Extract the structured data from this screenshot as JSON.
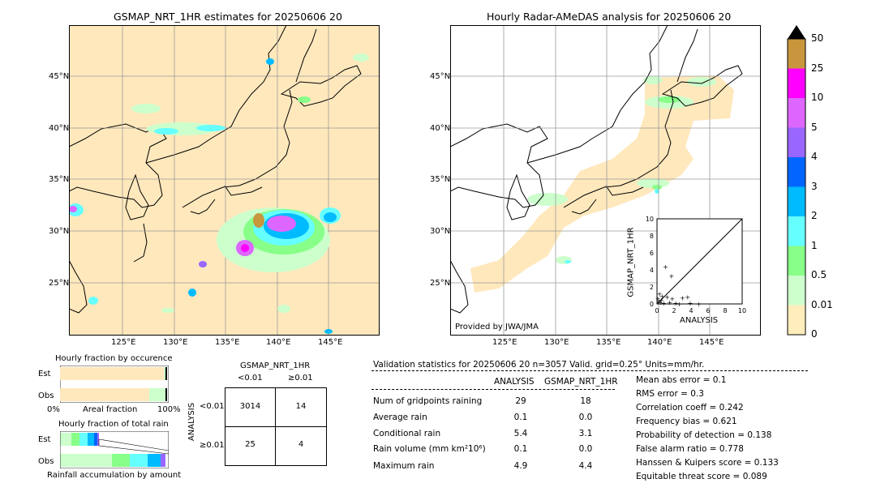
{
  "left_map": {
    "title": "GSMAP_NRT_1HR estimates for 20250606 20",
    "lat_labels": [
      "45°N",
      "40°N",
      "35°N",
      "30°N",
      "25°N"
    ],
    "lon_labels": [
      "125°E",
      "130°E",
      "135°E",
      "140°E",
      "145°E"
    ]
  },
  "right_map": {
    "title": "Hourly Radar-AMeDAS analysis for 20250606 20",
    "lat_labels": [
      "45°N",
      "40°N",
      "35°N",
      "30°N",
      "25°N"
    ],
    "lon_labels": [
      "125°E",
      "130°E",
      "135°E",
      "140°E",
      "145°E"
    ],
    "credit": "Provided by JWA/JMA"
  },
  "colorbar": {
    "labels": [
      "50",
      "25",
      "10",
      "5",
      "4",
      "3",
      "2",
      "1",
      "0.5",
      "0.01",
      "0"
    ],
    "colors": [
      "#c8963c",
      "#ff00ff",
      "#dd66ff",
      "#9966ff",
      "#0066ff",
      "#00bbff",
      "#66ffff",
      "#88ff88",
      "#ccffcc",
      "#ffeebb"
    ]
  },
  "occurrence": {
    "title": "Hourly fraction by occurence",
    "est_label": "Est",
    "obs_label": "Obs",
    "x_left": "0%",
    "x_mid": "Areal fraction",
    "x_right": "100%"
  },
  "total_rain": {
    "title": "Hourly fraction of total rain",
    "est_label": "Est",
    "obs_label": "Obs",
    "xlabel": "Rainfall accumulation by amount"
  },
  "contingency": {
    "col_title": "GSMAP_NRT_1HR",
    "col_labels": [
      "<0.01",
      "≥0.01"
    ],
    "row_title": "ANALYSIS",
    "row_labels": [
      "<0.01",
      "≥0.01"
    ],
    "cells": [
      [
        "3014",
        "14"
      ],
      [
        "25",
        "4"
      ]
    ]
  },
  "validation": {
    "header": "Validation statistics for 20250606 20  n=3057 Valid. grid=0.25° Units=mm/hr.",
    "col1": "ANALYSIS",
    "col2": "GSMAP_NRT_1HR",
    "rows": [
      {
        "label": "Num of gridpoints raining",
        "a": "29",
        "g": "18"
      },
      {
        "label": "Average rain",
        "a": "0.1",
        "g": "0.0"
      },
      {
        "label": "Conditional rain",
        "a": "5.4",
        "g": "3.1"
      },
      {
        "label": "Rain volume (mm km²10⁶)",
        "a": "0.1",
        "g": "0.0"
      },
      {
        "label": "Maximum rain",
        "a": "4.9",
        "g": "4.4"
      }
    ],
    "scores": [
      "Mean abs error =    0.1",
      "RMS error =    0.3",
      "Correlation coeff =  0.242",
      "Frequency bias =  0.621",
      "Probability of detection =  0.138",
      "False alarm ratio =  0.778",
      "Hanssen & Kuipers score =  0.133",
      "Equitable threat score =  0.089"
    ]
  },
  "chart_data": {
    "type": "scatter",
    "xlabel": "ANALYSIS",
    "ylabel": "GSMAP_NRT_1HR",
    "xlim": [
      0,
      10
    ],
    "ylim": [
      0,
      10
    ],
    "x_ticks": [
      "0",
      "2",
      "4",
      "6",
      "8",
      "10"
    ],
    "y_ticks": [
      "0",
      "2",
      "4",
      "6",
      "8",
      "10"
    ],
    "points": [
      {
        "x": 1.0,
        "y": 4.4
      },
      {
        "x": 1.7,
        "y": 3.3
      },
      {
        "x": 0.3,
        "y": 1.2
      },
      {
        "x": 0.6,
        "y": 0.9
      },
      {
        "x": 1.2,
        "y": 0.8
      },
      {
        "x": 1.8,
        "y": 0.6
      },
      {
        "x": 3.0,
        "y": 0.7
      },
      {
        "x": 3.6,
        "y": 0.8
      },
      {
        "x": 0.2,
        "y": 0.3
      },
      {
        "x": 0.4,
        "y": 0.2
      },
      {
        "x": 0.8,
        "y": 0.1
      },
      {
        "x": 1.5,
        "y": 0.2
      },
      {
        "x": 2.2,
        "y": 0.1
      },
      {
        "x": 2.6,
        "y": 0.0
      },
      {
        "x": 3.9,
        "y": 0.1
      },
      {
        "x": 4.9,
        "y": 0.0
      },
      {
        "x": 0.1,
        "y": 0.6
      },
      {
        "x": 0.5,
        "y": 0.5
      }
    ]
  }
}
